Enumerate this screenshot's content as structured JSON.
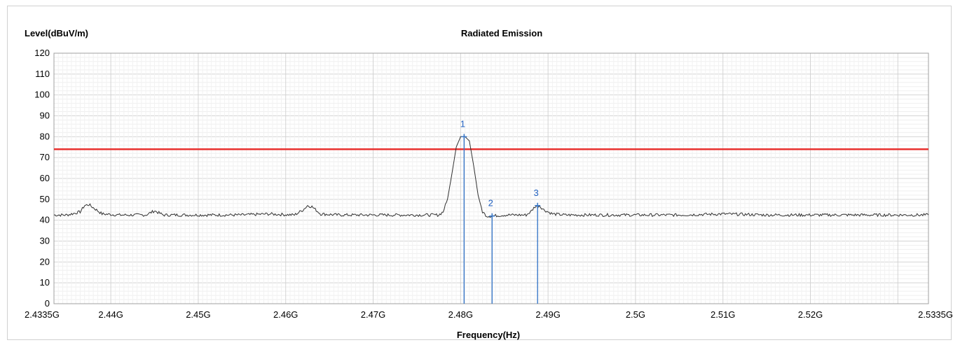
{
  "chart_data": {
    "type": "line",
    "title": "Radiated Emission",
    "ylabel": "Level(dBuV/m)",
    "xlabel": "Frequency(Hz)",
    "xlim": [
      2.4335,
      2.5335
    ],
    "ylim": [
      0,
      120
    ],
    "grid": true,
    "yticks": [
      0,
      10,
      20,
      30,
      40,
      50,
      60,
      70,
      80,
      90,
      100,
      110,
      120
    ],
    "xticks": [
      {
        "value": 2.4335,
        "label": "2.4335G"
      },
      {
        "value": 2.44,
        "label": "2.44G"
      },
      {
        "value": 2.45,
        "label": "2.45G"
      },
      {
        "value": 2.46,
        "label": "2.46G"
      },
      {
        "value": 2.47,
        "label": "2.47G"
      },
      {
        "value": 2.48,
        "label": "2.48G"
      },
      {
        "value": 2.49,
        "label": "2.49G"
      },
      {
        "value": 2.5,
        "label": "2.5G"
      },
      {
        "value": 2.51,
        "label": "2.51G"
      },
      {
        "value": 2.52,
        "label": "2.52G"
      },
      {
        "value": 2.5335,
        "label": "2.5335G"
      }
    ],
    "limit_line": {
      "value": 74,
      "color": "#e8312f"
    },
    "series": [
      {
        "color": "#303030",
        "x": [
          2.4335,
          2.435,
          2.4365,
          2.437,
          2.4375,
          2.438,
          2.439,
          2.441,
          2.444,
          2.445,
          2.446,
          2.45,
          2.452,
          2.455,
          2.458,
          2.461,
          2.462,
          2.4625,
          2.463,
          2.464,
          2.466,
          2.468,
          2.47,
          2.473,
          2.4775,
          2.478,
          2.4785,
          2.479,
          2.4795,
          2.48,
          2.4805,
          2.481,
          2.4815,
          2.482,
          2.4825,
          2.483,
          2.4835,
          2.485,
          2.4875,
          2.488,
          2.4885,
          2.489,
          2.4895,
          2.4905,
          2.492,
          2.495,
          2.5,
          2.505,
          2.51,
          2.515,
          2.52,
          2.525,
          2.53,
          2.5335
        ],
        "y": [
          42.5,
          42.5,
          44,
          47,
          47.5,
          46,
          43,
          42.5,
          42.5,
          44.5,
          42.5,
          42.5,
          42.5,
          42.5,
          43,
          42.5,
          45,
          47,
          46.5,
          43,
          42.5,
          42.5,
          42.5,
          42.5,
          42.5,
          44,
          50,
          62,
          75,
          80,
          80,
          78,
          66,
          52,
          44,
          42,
          42,
          42.5,
          42.5,
          44,
          46.5,
          47,
          45,
          43,
          42.5,
          42.5,
          42.5,
          42.5,
          43,
          42.5,
          42.5,
          42.5,
          42.5,
          42.5
        ]
      }
    ],
    "markers": [
      {
        "label": "1",
        "x": 2.4804,
        "y": 80
      },
      {
        "label": "2",
        "x": 2.4836,
        "y": 42
      },
      {
        "label": "3",
        "x": 2.4888,
        "y": 47
      }
    ]
  }
}
